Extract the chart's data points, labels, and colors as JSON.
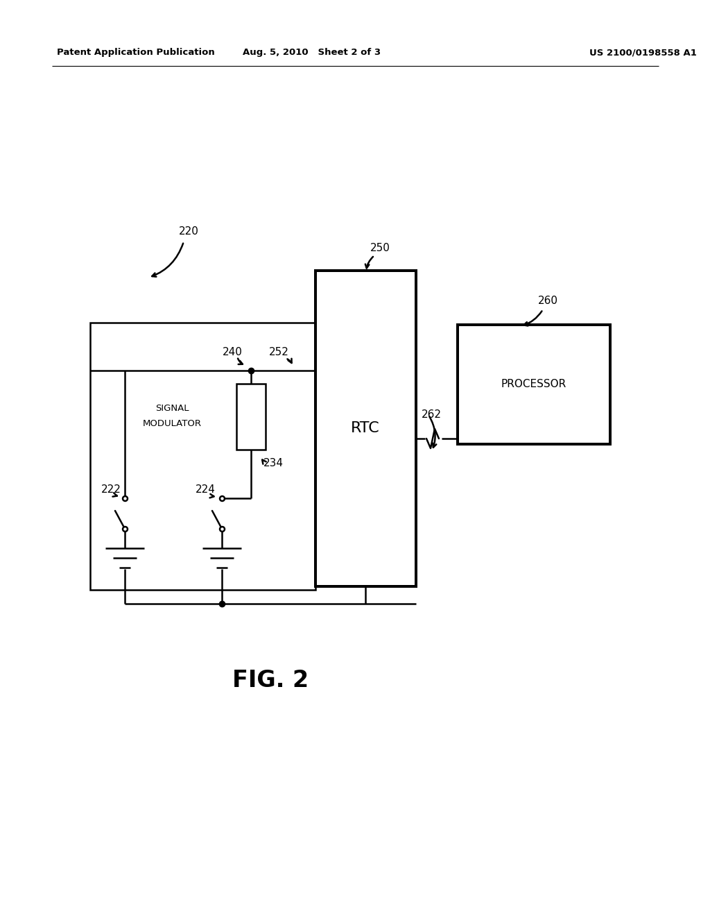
{
  "bg": "#ffffff",
  "lc": "#000000",
  "header_left": "Patent Application Publication",
  "header_mid": "Aug. 5, 2010   Sheet 2 of 3",
  "header_right": "US 2100/0198558 A1",
  "fig_caption": "FIG. 2",
  "label_220": "220",
  "label_240": "240",
  "label_250": "250",
  "label_252": "252",
  "label_260": "260",
  "label_262": "262",
  "label_222": "222",
  "label_224": "224",
  "label_234": "234",
  "text_signal1": "SIGNAL",
  "text_signal2": "MODULATOR",
  "text_rtc": "RTC",
  "text_processor": "PROCESSOR"
}
